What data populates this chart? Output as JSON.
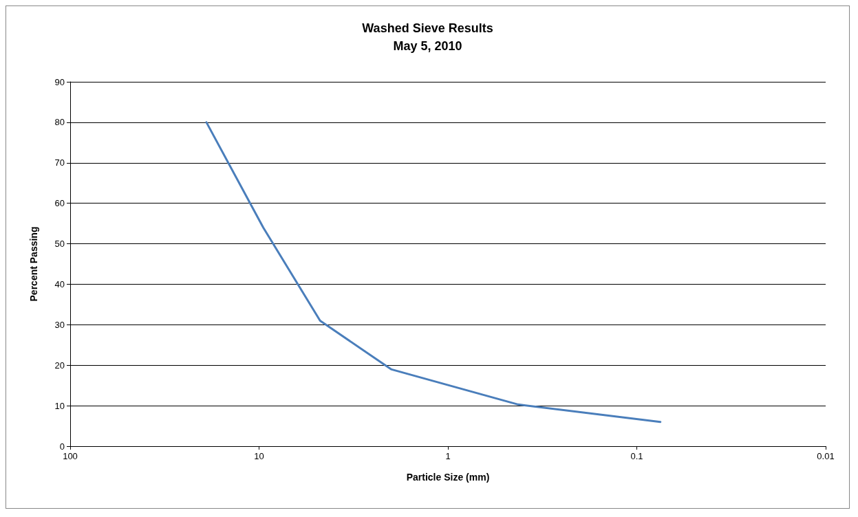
{
  "chart_data": {
    "type": "line",
    "title": "Washed Sieve Results\nMay 5, 2010",
    "xlabel": "Particle Size (mm)",
    "ylabel": "Percent Passing",
    "log": "x",
    "xlim": [
      100,
      0.01
    ],
    "xticks": [
      100,
      10,
      1,
      0.1,
      0.01
    ],
    "ylim": [
      0,
      90
    ],
    "yticks": [
      0,
      10,
      20,
      30,
      40,
      50,
      60,
      70,
      80,
      90
    ],
    "grid": "y",
    "marker": "none",
    "line_style": "solid",
    "series": [
      {
        "color": "#4a7ebb",
        "x": [
          19,
          9.5,
          4.75,
          2,
          0.425,
          0.075
        ],
        "values": [
          80,
          54,
          31,
          19,
          10.3,
          6
        ]
      }
    ]
  }
}
